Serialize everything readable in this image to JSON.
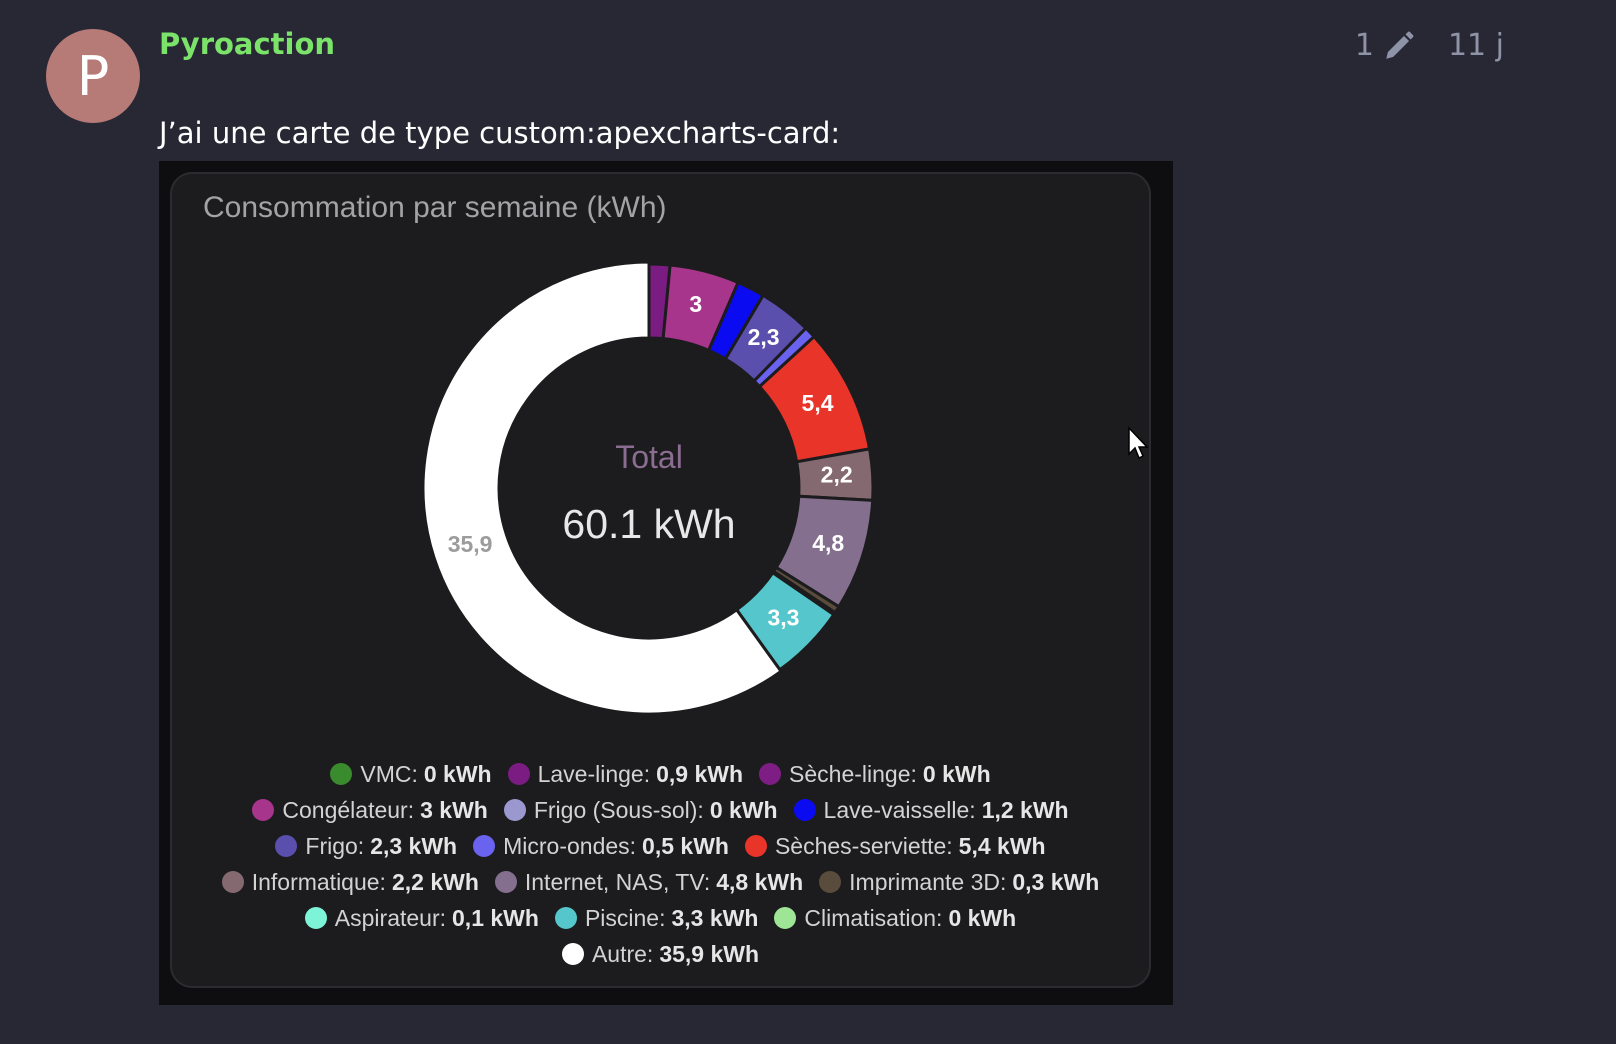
{
  "post": {
    "avatar_letter": "P",
    "username": "Pyroaction",
    "edit_count": "1",
    "age": "11 j",
    "text": "J’ai une carte de type custom:apexcharts-card:"
  },
  "icons": {
    "edit": "pencil-icon",
    "cursor": "mouse-pointer-icon"
  },
  "colors": {
    "page_bg": "#272834",
    "username": "#7be36a",
    "avatar_bg": "#b67a77"
  },
  "chart_data": {
    "type": "pie",
    "variant": "donut",
    "title": "Consommation par semaine (kWh)",
    "center_label": "Total",
    "center_value": "60.1 kWh",
    "legend_position": "bottom",
    "slices": [
      {
        "name": "VMC",
        "value": 0,
        "color": "#3a8a2e",
        "legend_label": "VMC:",
        "legend_value": "0 kWh"
      },
      {
        "name": "Lave-linge",
        "value": 0.9,
        "color": "#7b1c82",
        "legend_label": "Lave-linge:",
        "legend_value": "0,9 kWh"
      },
      {
        "name": "Sèche-linge",
        "value": 0,
        "color": "#7e1e84",
        "legend_label": "Sèche-linge:",
        "legend_value": "0 kWh"
      },
      {
        "name": "Congélateur",
        "value": 3,
        "color": "#a8358c",
        "legend_label": "Congélateur:",
        "legend_value": "3 kWh",
        "label": "3"
      },
      {
        "name": "Frigo (Sous-sol)",
        "value": 0,
        "color": "#9b98d0",
        "legend_label": "Frigo (Sous-sol):",
        "legend_value": "0 kWh"
      },
      {
        "name": "Lave-vaisselle",
        "value": 1.2,
        "color": "#0b0bf2",
        "legend_label": "Lave-vaisselle:",
        "legend_value": "1,2 kWh"
      },
      {
        "name": "Frigo",
        "value": 2.3,
        "color": "#5b4fad",
        "legend_label": "Frigo:",
        "legend_value": "2,3 kWh",
        "label": "2,3"
      },
      {
        "name": "Micro-ondes",
        "value": 0.5,
        "color": "#6a63f0",
        "legend_label": "Micro-ondes:",
        "legend_value": "0,5 kWh"
      },
      {
        "name": "Sèches-serviette",
        "value": 5.4,
        "color": "#e9342a",
        "legend_label": "Sèches-serviette:",
        "legend_value": "5,4 kWh",
        "label": "5,4"
      },
      {
        "name": "Informatique",
        "value": 2.2,
        "color": "#846a70",
        "legend_label": "Informatique:",
        "legend_value": "2,2 kWh",
        "label": "2,2"
      },
      {
        "name": "Internet, NAS, TV",
        "value": 4.8,
        "color": "#84708e",
        "legend_label": "Internet, NAS, TV:",
        "legend_value": "4,8 kWh",
        "label": "4,8"
      },
      {
        "name": "Imprimante 3D",
        "value": 0.3,
        "color": "#5a4c3c",
        "legend_label": "Imprimante 3D:",
        "legend_value": "0,3 kWh"
      },
      {
        "name": "Aspirateur",
        "value": 0.1,
        "color": "#7df3d8",
        "legend_label": "Aspirateur:",
        "legend_value": "0,1 kWh"
      },
      {
        "name": "Piscine",
        "value": 3.3,
        "color": "#55c6cc",
        "legend_label": "Piscine:",
        "legend_value": "3,3 kWh",
        "label": "3,3"
      },
      {
        "name": "Climatisation",
        "value": 0,
        "color": "#9ee596",
        "legend_label": "Climatisation:",
        "legend_value": "0 kWh"
      },
      {
        "name": "Autre",
        "value": 35.9,
        "color": "#ffffff",
        "legend_label": "Autre:",
        "legend_value": "35,9 kWh",
        "label": "35,9"
      }
    ]
  }
}
